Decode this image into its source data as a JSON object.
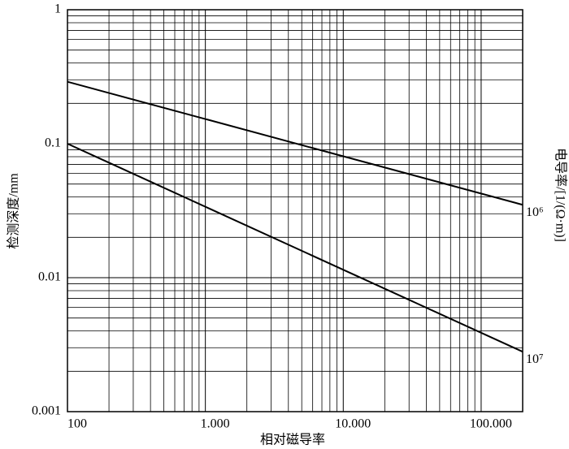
{
  "chart_data": {
    "type": "line",
    "x_label": "相对磁导率",
    "y_label": "检测深度/mm",
    "y2_label": "电导率/[1/(Ω·m)]",
    "log_x": true,
    "log_y": true,
    "grid": true,
    "minor_grid": true,
    "xlim": [
      100,
      200000
    ],
    "ylim": [
      0.001,
      1
    ],
    "xticks": [
      100,
      {
        "value": 1000,
        "label": "1.000"
      },
      {
        "value": 10000,
        "label": "10.000"
      },
      {
        "value": 100000,
        "label": "100.000"
      }
    ],
    "yticks": [
      0.001,
      0.01,
      0.1,
      1
    ],
    "x": [
      100,
      200000
    ],
    "series": [
      {
        "name": "10⁶",
        "color": "#000000",
        "values": [
          0.29,
          0.035
        ]
      },
      {
        "name": "10⁷",
        "color": "#000000",
        "values": [
          0.1,
          0.0028
        ]
      }
    ]
  }
}
